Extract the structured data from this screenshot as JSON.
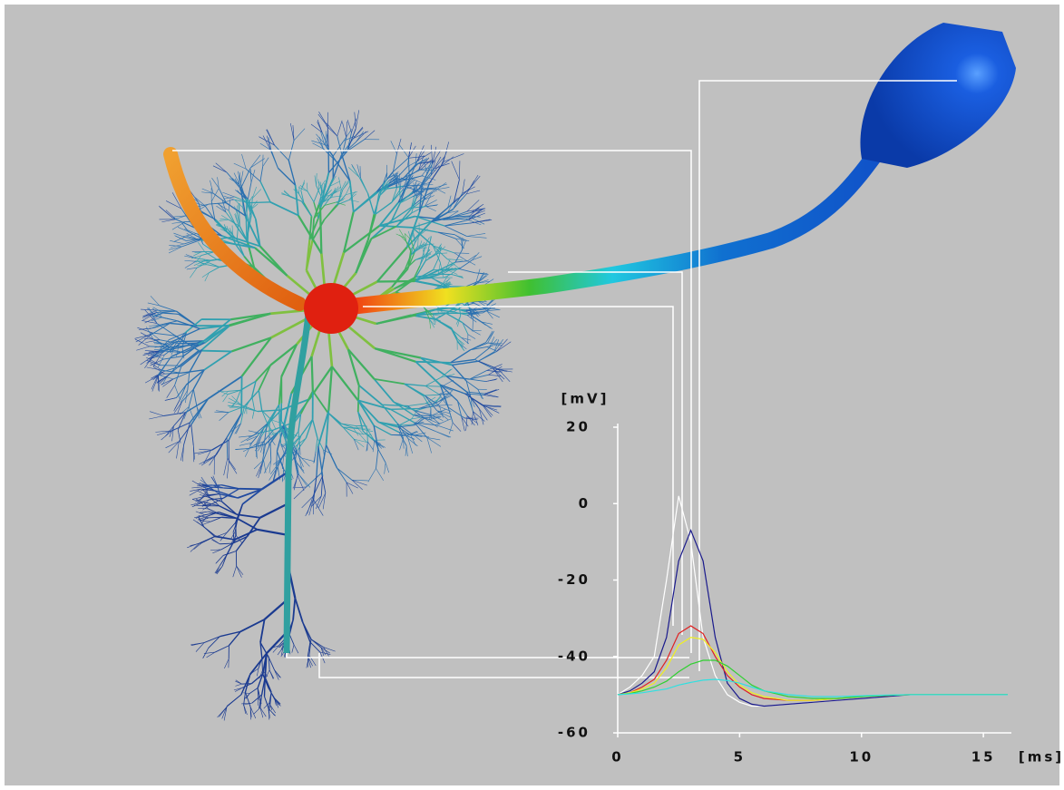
{
  "chart_data": {
    "type": "line",
    "y_label": "[mV]",
    "x_label": "[ms]",
    "xlim": [
      0,
      16
    ],
    "ylim": [
      -60,
      20
    ],
    "xticks": [
      0,
      5,
      10,
      15
    ],
    "yticks": [
      -60,
      -40,
      -20,
      0,
      20
    ],
    "x": [
      0,
      0.5,
      1,
      1.5,
      2,
      2.5,
      3,
      3.5,
      4,
      4.5,
      5,
      5.5,
      6,
      7,
      8,
      9,
      10,
      11,
      12,
      13,
      14,
      15,
      16
    ],
    "series": [
      {
        "color": "#ffffff",
        "values": [
          -50,
          -48,
          -45,
          -40,
          -20,
          2,
          -10,
          -35,
          -45,
          -50,
          -52,
          -53,
          -53,
          -52.5,
          -52,
          -51.5,
          -51,
          -50.5,
          -50,
          -50,
          -50,
          -50,
          -50
        ]
      },
      {
        "color": "#1a1a8c",
        "values": [
          -50,
          -49,
          -47,
          -44,
          -35,
          -15,
          -7,
          -15,
          -35,
          -47,
          -51,
          -52.5,
          -53,
          -52.5,
          -52,
          -51.5,
          -51,
          -50.5,
          -50,
          -50,
          -50,
          -50,
          -50
        ]
      },
      {
        "color": "#e02020",
        "values": [
          -50,
          -49.5,
          -48,
          -46,
          -41,
          -34,
          -32,
          -34,
          -40,
          -45,
          -48,
          -50,
          -51,
          -51.5,
          -51.5,
          -51,
          -50.5,
          -50.2,
          -50,
          -50,
          -50,
          -50,
          -50
        ]
      },
      {
        "color": "#f0f020",
        "values": [
          -50,
          -49.5,
          -48.5,
          -47,
          -43,
          -37,
          -35,
          -35.5,
          -39,
          -44,
          -47.5,
          -49.5,
          -50.5,
          -51.5,
          -51.5,
          -51,
          -50.5,
          -50.2,
          -50,
          -50,
          -50,
          -50,
          -50
        ]
      },
      {
        "color": "#30d030",
        "values": [
          -50,
          -49.7,
          -49,
          -48,
          -46.5,
          -44,
          -42,
          -41,
          -41,
          -42.5,
          -45,
          -47.5,
          -49,
          -50.5,
          -51,
          -51,
          -50.5,
          -50.2,
          -50,
          -50,
          -50,
          -50,
          -50
        ]
      },
      {
        "color": "#30e0e0",
        "values": [
          -50,
          -49.8,
          -49.5,
          -49,
          -48.5,
          -47.5,
          -46.8,
          -46.2,
          -46,
          -46.3,
          -47,
          -48,
          -49,
          -50,
          -50.5,
          -50.5,
          -50.3,
          -50.1,
          -50,
          -50,
          -50,
          -50,
          -50
        ]
      }
    ]
  }
}
